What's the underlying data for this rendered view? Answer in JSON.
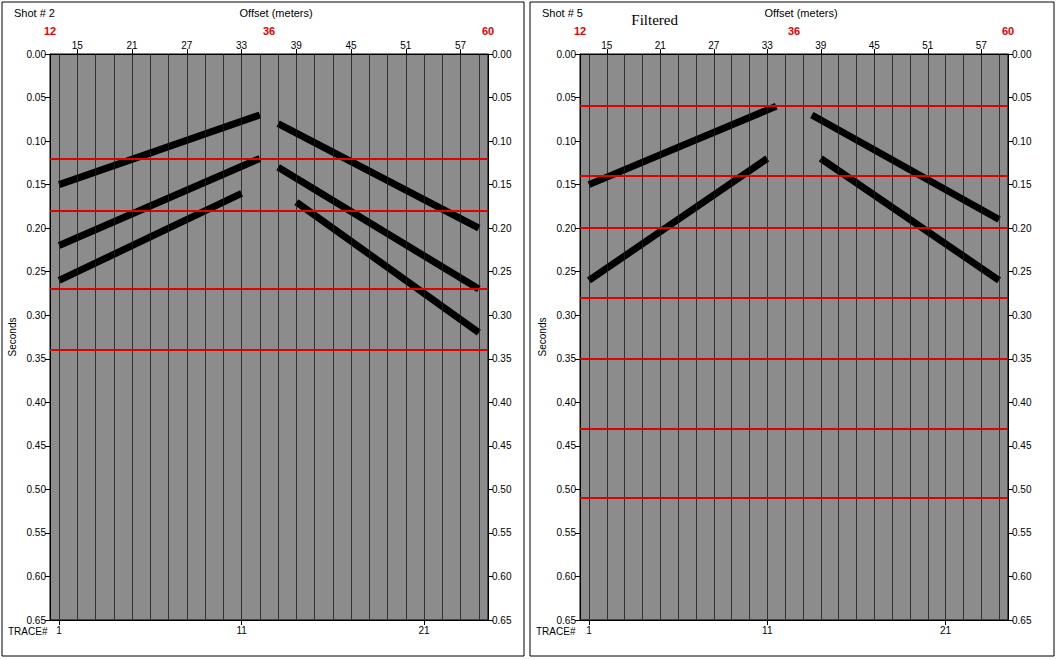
{
  "chart_data": [
    {
      "type": "line",
      "title": "Shot # 2",
      "x_label": "Offset (meters)",
      "y_label": "Seconds",
      "x2_label": "TRACE#",
      "xlim": [
        12,
        60
      ],
      "xticks": [
        15,
        21,
        27,
        33,
        39,
        45,
        51,
        57
      ],
      "marked_offsets": [
        12,
        36,
        60
      ],
      "marked_color": "#e00000",
      "trace_ticks": [
        {
          "value": 13,
          "label": "1"
        },
        {
          "value": 33,
          "label": "11"
        },
        {
          "value": 53,
          "label": "21"
        }
      ],
      "traces": [
        13,
        15,
        17,
        19,
        21,
        23,
        25,
        27,
        29,
        31,
        33,
        35,
        37,
        39,
        41,
        43,
        45,
        47,
        49,
        51,
        53,
        55,
        57,
        59
      ],
      "ylim": [
        0,
        0.65
      ],
      "yticks": [
        {
          "value": 0,
          "label": "0.00"
        },
        {
          "value": 0.05,
          "label": "0.05"
        },
        {
          "value": 0.1,
          "label": "0.10"
        },
        {
          "value": 0.15,
          "label": "0.15"
        },
        {
          "value": 0.2,
          "label": "0.20"
        },
        {
          "value": 0.25,
          "label": "0.25"
        },
        {
          "value": 0.3,
          "label": "0.30"
        },
        {
          "value": 0.35,
          "label": "0.35"
        },
        {
          "value": 0.4,
          "label": "0.40"
        },
        {
          "value": 0.45,
          "label": "0.45"
        },
        {
          "value": 0.5,
          "label": "0.50"
        },
        {
          "value": 0.55,
          "label": "0.55"
        },
        {
          "value": 0.6,
          "label": "0.60"
        },
        {
          "value": 0.65,
          "label": "0.65"
        }
      ],
      "red_lines": [
        0.115,
        0.185,
        0.265,
        0.335
      ],
      "red_line_color": "#e00000",
      "series": [
        {
          "color": "#000000",
          "x": [
            13,
            35
          ],
          "values": [
            0.15,
            0.07
          ]
        },
        {
          "color": "#000000",
          "x": [
            13,
            35
          ],
          "values": [
            0.22,
            0.12
          ]
        },
        {
          "color": "#000000",
          "x": [
            13,
            33
          ],
          "values": [
            0.26,
            0.16
          ]
        },
        {
          "color": "#000000",
          "x": [
            37,
            59
          ],
          "values": [
            0.08,
            0.2
          ]
        },
        {
          "color": "#000000",
          "x": [
            37,
            59
          ],
          "values": [
            0.13,
            0.27
          ]
        },
        {
          "color": "#000000",
          "x": [
            39,
            59
          ],
          "values": [
            0.17,
            0.32
          ]
        }
      ]
    },
    {
      "type": "line",
      "title": "Shot # 5",
      "subtitle": "Filtered",
      "x_label": "Offset (meters)",
      "y_label": "Seconds",
      "x2_label": "TRACE#",
      "xlim": [
        12,
        60
      ],
      "xticks": [
        15,
        21,
        27,
        33,
        39,
        45,
        51,
        57
      ],
      "marked_offsets": [
        12,
        36,
        60
      ],
      "marked_color": "#e00000",
      "trace_ticks": [
        {
          "value": 13,
          "label": "1"
        },
        {
          "value": 33,
          "label": "11"
        },
        {
          "value": 53,
          "label": "21"
        }
      ],
      "traces": [
        13,
        15,
        17,
        19,
        21,
        23,
        25,
        27,
        29,
        31,
        33,
        35,
        37,
        39,
        41,
        43,
        45,
        47,
        49,
        51,
        53,
        55,
        57,
        59
      ],
      "ylim": [
        0,
        0.65
      ],
      "yticks": [
        {
          "value": 0,
          "label": "0.00"
        },
        {
          "value": 0.05,
          "label": "0.05"
        },
        {
          "value": 0.1,
          "label": "0.10"
        },
        {
          "value": 0.15,
          "label": "0.15"
        },
        {
          "value": 0.2,
          "label": "0.20"
        },
        {
          "value": 0.25,
          "label": "0.25"
        },
        {
          "value": 0.3,
          "label": "0.30"
        },
        {
          "value": 0.35,
          "label": "0.35"
        },
        {
          "value": 0.4,
          "label": "0.40"
        },
        {
          "value": 0.45,
          "label": "0.45"
        },
        {
          "value": 0.5,
          "label": "0.50"
        },
        {
          "value": 0.55,
          "label": "0.55"
        },
        {
          "value": 0.6,
          "label": "0.60"
        },
        {
          "value": 0.65,
          "label": "0.65"
        }
      ],
      "red_lines": [
        0.055,
        0.135,
        0.195,
        0.285,
        0.355,
        0.43,
        0.505
      ],
      "red_line_color": "#e00000",
      "series": [
        {
          "color": "#000000",
          "x": [
            13,
            34
          ],
          "values": [
            0.15,
            0.06
          ]
        },
        {
          "color": "#000000",
          "x": [
            13,
            33
          ],
          "values": [
            0.26,
            0.12
          ]
        },
        {
          "color": "#000000",
          "x": [
            38,
            59
          ],
          "values": [
            0.07,
            0.19
          ]
        },
        {
          "color": "#000000",
          "x": [
            39,
            59
          ],
          "values": [
            0.12,
            0.26
          ]
        }
      ]
    }
  ]
}
